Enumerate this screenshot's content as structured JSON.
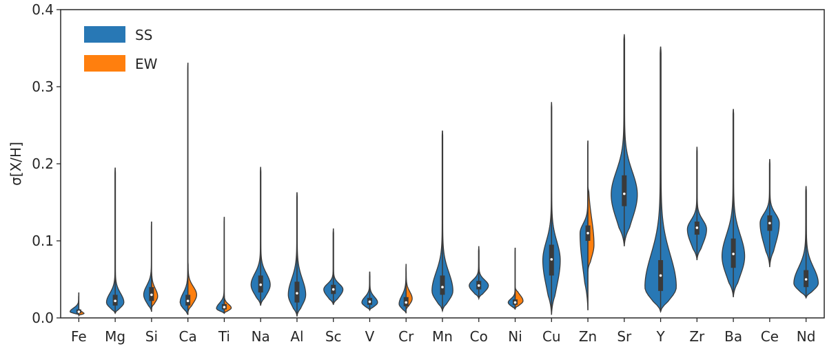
{
  "chart_data": {
    "type": "violin",
    "title": "",
    "xlabel": "",
    "ylabel": "σ[X/H]",
    "ylim": [
      0,
      0.4
    ],
    "yticks": [
      "0.0",
      "0.1",
      "0.2",
      "0.3",
      "0.4"
    ],
    "categories": [
      "Fe",
      "Mg",
      "Si",
      "Ca",
      "Ti",
      "Na",
      "Al",
      "Sc",
      "V",
      "Cr",
      "Mn",
      "Co",
      "Ni",
      "Cu",
      "Zn",
      "Sr",
      "Y",
      "Zr",
      "Ba",
      "Ce",
      "Nd"
    ],
    "legend": {
      "placement": "top-left",
      "entries": [
        "SS",
        "EW"
      ]
    },
    "colors": {
      "SS": "#2878b5",
      "EW": "#ff7f0e",
      "outline": "#3a3a3a"
    },
    "series": [
      {
        "name": "SS",
        "median": [
          0.008,
          0.022,
          0.03,
          0.022,
          0.014,
          0.043,
          0.032,
          0.037,
          0.021,
          0.02,
          0.04,
          0.042,
          0.02,
          0.076,
          0.11,
          0.161,
          0.055,
          0.117,
          0.083,
          0.123,
          0.05
        ],
        "q1": [
          0.006,
          0.016,
          0.022,
          0.016,
          0.011,
          0.033,
          0.02,
          0.031,
          0.017,
          0.015,
          0.03,
          0.037,
          0.017,
          0.055,
          0.1,
          0.145,
          0.035,
          0.108,
          0.065,
          0.113,
          0.04
        ],
        "q3": [
          0.011,
          0.03,
          0.04,
          0.03,
          0.018,
          0.055,
          0.047,
          0.043,
          0.026,
          0.027,
          0.055,
          0.048,
          0.024,
          0.095,
          0.12,
          0.185,
          0.075,
          0.125,
          0.103,
          0.133,
          0.062
        ],
        "min": [
          0.004,
          0.006,
          0.008,
          0.004,
          0.006,
          0.016,
          0.002,
          0.017,
          0.01,
          0.006,
          0.009,
          0.025,
          0.011,
          0.004,
          0.01,
          0.093,
          0.008,
          0.075,
          0.027,
          0.066,
          0.026
        ],
        "max": [
          0.033,
          0.195,
          0.125,
          0.331,
          0.131,
          0.196,
          0.163,
          0.116,
          0.06,
          0.07,
          0.243,
          0.093,
          0.091,
          0.28,
          0.23,
          0.368,
          0.352,
          0.222,
          0.271,
          0.206,
          0.171
        ],
        "mode": [
          0.008,
          0.02,
          0.03,
          0.02,
          0.012,
          0.043,
          0.03,
          0.037,
          0.02,
          0.018,
          0.035,
          0.042,
          0.02,
          0.075,
          0.11,
          0.16,
          0.04,
          0.115,
          0.08,
          0.123,
          0.045
        ],
        "width": [
          0.5,
          0.5,
          0.45,
          0.45,
          0.45,
          0.55,
          0.5,
          0.55,
          0.45,
          0.4,
          0.6,
          0.55,
          0.4,
          0.5,
          0.45,
          0.75,
          0.9,
          0.55,
          0.65,
          0.55,
          0.7
        ]
      },
      {
        "name": "EW",
        "elements": [
          "Fe",
          "Si",
          "Ca",
          "Ti",
          "Cr",
          "Ni",
          "Zn"
        ],
        "median": [
          0.006,
          0.028,
          0.03,
          0.013,
          0.025,
          0.022,
          0.095
        ],
        "min": [
          0.003,
          0.012,
          0.007,
          0.006,
          0.01,
          0.012,
          0.06
        ],
        "max": [
          0.012,
          0.06,
          0.075,
          0.03,
          0.065,
          0.04,
          0.17
        ],
        "width": [
          0.3,
          0.35,
          0.5,
          0.4,
          0.35,
          0.45,
          0.35
        ]
      }
    ]
  }
}
